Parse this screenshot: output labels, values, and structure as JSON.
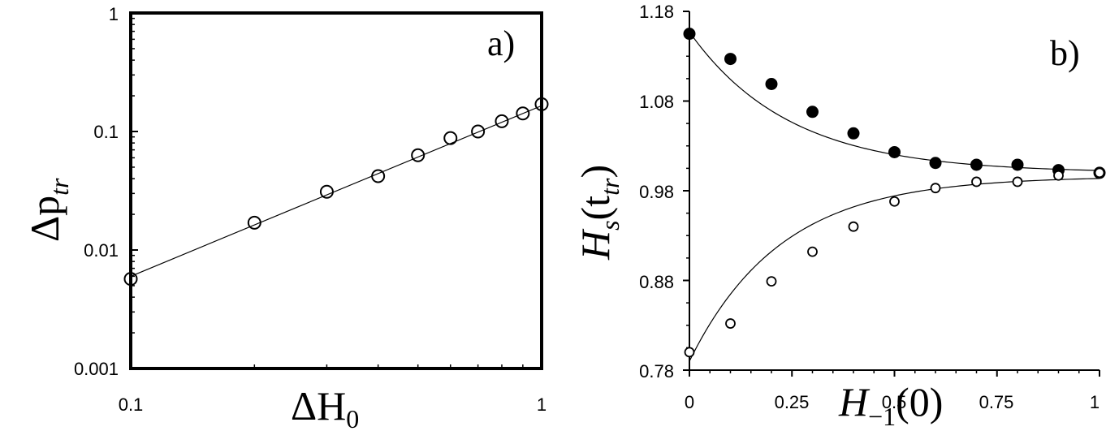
{
  "chart_data": [
    {
      "type": "scatter",
      "panel_label": "a)",
      "xlabel": {
        "main": "ΔH",
        "sub": "0"
      },
      "ylabel": {
        "main": "Δp",
        "sub": "tr"
      },
      "xscale": "log",
      "yscale": "log",
      "xlim": [
        0.1,
        1
      ],
      "ylim": [
        0.001,
        1
      ],
      "x_tick_labels": [
        "0.1",
        "1"
      ],
      "y_tick_labels": [
        "0.001",
        "0.01",
        "0.1",
        "1"
      ],
      "series": [
        {
          "marker": "open-circle",
          "x": [
            0.1,
            0.2,
            0.3,
            0.4,
            0.5,
            0.6,
            0.7,
            0.8,
            0.9,
            1.0
          ],
          "y": [
            0.0057,
            0.017,
            0.031,
            0.042,
            0.063,
            0.088,
            0.1,
            0.122,
            0.142,
            0.17
          ]
        }
      ],
      "fit_line": {
        "x": [
          0.1,
          1.0
        ],
        "y": [
          0.006,
          0.165
        ]
      }
    },
    {
      "type": "scatter",
      "panel_label": "b)",
      "xlabel": {
        "main": "H",
        "sub": "−1",
        "suffix": "(0)"
      },
      "ylabel": {
        "main": "H",
        "sub": "s",
        "suffix": "(t",
        "sub2": "tr",
        "close": ")"
      },
      "xlim": [
        0,
        1
      ],
      "ylim": [
        0.78,
        1.18
      ],
      "x_tick_labels": [
        "0",
        "0.25",
        "0.5",
        "0.75",
        "1"
      ],
      "x_ticks": [
        0,
        0.25,
        0.5,
        0.75,
        1
      ],
      "y_tick_labels": [
        "0.78",
        "0.88",
        "0.98",
        "1.08",
        "1.18"
      ],
      "y_ticks": [
        0.78,
        0.88,
        0.98,
        1.08,
        1.18
      ],
      "series": [
        {
          "marker": "filled-circle",
          "x": [
            0,
            0.1,
            0.2,
            0.3,
            0.4,
            0.5,
            0.6,
            0.7,
            0.8,
            0.9,
            1.0
          ],
          "y": [
            1.155,
            1.127,
            1.099,
            1.068,
            1.044,
            1.023,
            1.011,
            1.009,
            1.009,
            1.003,
            1.0
          ]
        },
        {
          "marker": "open-circle",
          "x": [
            0,
            0.1,
            0.2,
            0.3,
            0.4,
            0.5,
            0.6,
            0.7,
            0.8,
            0.9,
            1.0
          ],
          "y": [
            0.8,
            0.832,
            0.879,
            0.912,
            0.94,
            0.968,
            0.983,
            0.99,
            0.99,
            0.997,
            1.0
          ]
        }
      ],
      "fit_curves": [
        {
          "x0": 0,
          "y0": 1.157,
          "yinf": 1.0,
          "k": 4.1
        },
        {
          "x0": 0,
          "y0": 0.79,
          "yinf": 0.996,
          "k": 4.5
        }
      ]
    }
  ]
}
